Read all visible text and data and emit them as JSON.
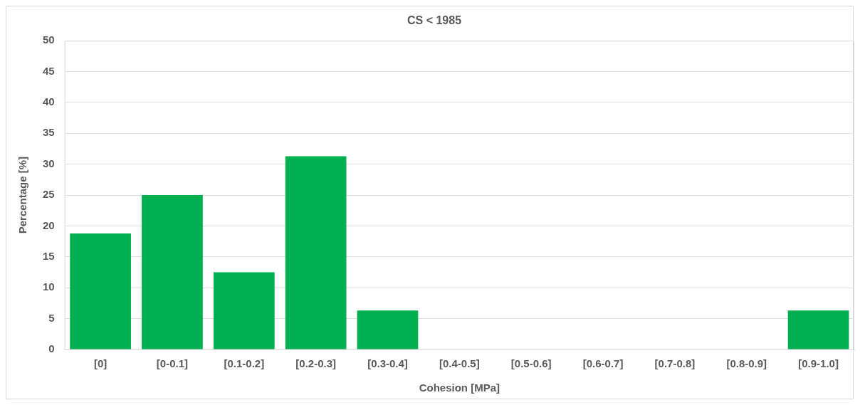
{
  "chart_data": {
    "type": "bar",
    "title": "CS < 1985",
    "xlabel": "Cohesion [MPa]",
    "ylabel": "Percentage [%]",
    "categories": [
      "[0]",
      "[0-0.1]",
      "[0.1-0.2]",
      "[0.2-0.3]",
      "[0.3-0.4]",
      "[0.4-0.5]",
      "[0.5-0.6]",
      "[0.6-0.7]",
      "[0.7-0.8]",
      "[0.8-0.9]",
      "[0.9-1.0]"
    ],
    "values": [
      18.8,
      25,
      12.5,
      31.3,
      6.3,
      0,
      0,
      0,
      0,
      0,
      6.3
    ],
    "color": "#00b050",
    "ylim": [
      0,
      50
    ],
    "yticks": [
      0,
      5,
      10,
      15,
      20,
      25,
      30,
      35,
      40,
      45,
      50
    ],
    "grid": "y"
  }
}
